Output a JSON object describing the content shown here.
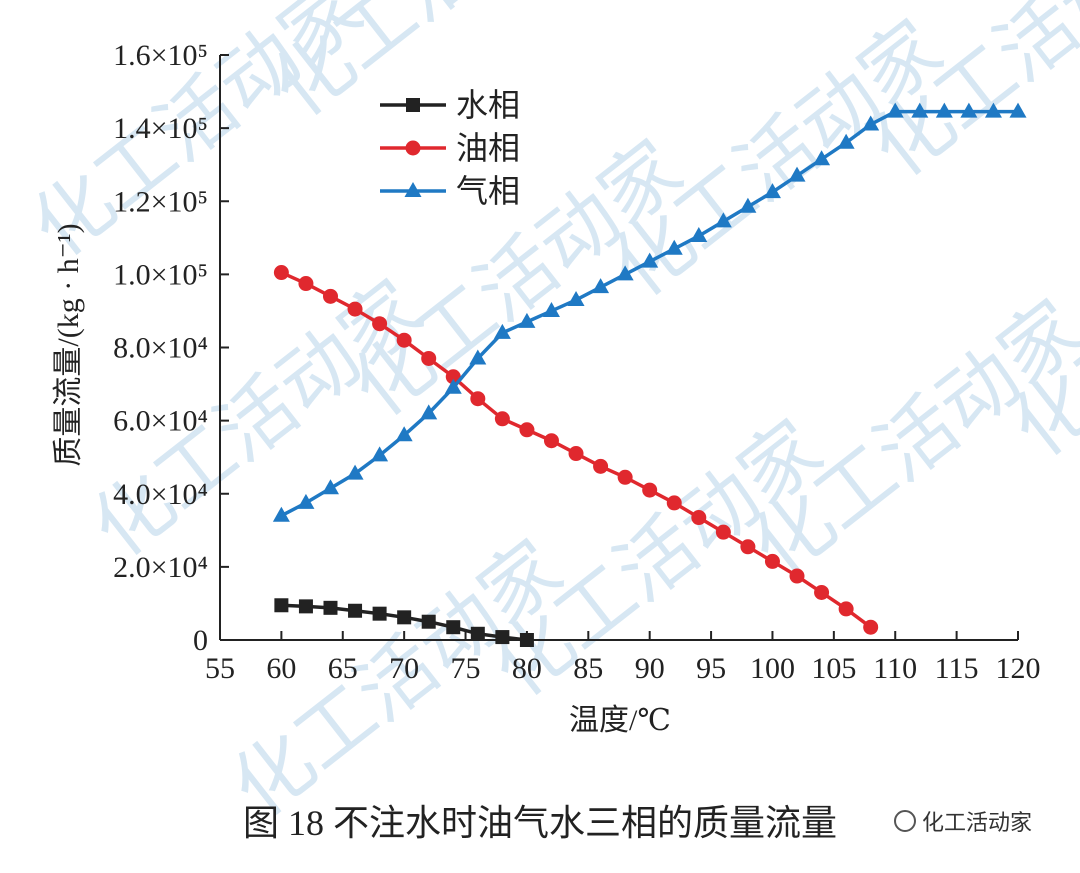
{
  "chart_data": {
    "type": "line",
    "xlabel": "温度/℃",
    "ylabel": "质量流量/(kg · h⁻¹)",
    "xlim": [
      55,
      120
    ],
    "ylim": [
      0,
      160000
    ],
    "x_ticks": [
      "55",
      "60",
      "65",
      "70",
      "75",
      "80",
      "85",
      "90",
      "95",
      "100",
      "105",
      "110",
      "115",
      "120"
    ],
    "y_ticks": [
      "0",
      "2.0×10⁴",
      "4.0×10⁴",
      "6.0×10⁴",
      "8.0×10⁴",
      "1.0×10⁵",
      "1.2×10⁵",
      "1.4×10⁵",
      "1.6×10⁵"
    ],
    "y_tick_values": [
      0,
      20000,
      40000,
      60000,
      80000,
      100000,
      120000,
      140000,
      160000
    ],
    "legend_position": "top-left",
    "grid": false,
    "series": [
      {
        "name": "水相",
        "color": "#222222",
        "marker": "square",
        "x": [
          60,
          62,
          64,
          66,
          68,
          70,
          72,
          74,
          76,
          78,
          80
        ],
        "y": [
          9500,
          9200,
          8800,
          8000,
          7200,
          6200,
          5000,
          3500,
          1700,
          800,
          0
        ]
      },
      {
        "name": "油相",
        "color": "#e0282e",
        "marker": "circle",
        "x": [
          60,
          62,
          64,
          66,
          68,
          70,
          72,
          74,
          76,
          78,
          80,
          82,
          84,
          86,
          88,
          90,
          92,
          94,
          96,
          98,
          100,
          102,
          104,
          106,
          108
        ],
        "y": [
          100500,
          97500,
          94000,
          90500,
          86500,
          82000,
          77000,
          72000,
          66000,
          60500,
          57500,
          54500,
          51000,
          47500,
          44500,
          41000,
          37500,
          33500,
          29500,
          25500,
          21500,
          17500,
          13000,
          8500,
          3500
        ]
      },
      {
        "name": "气相",
        "color": "#1f79c4",
        "marker": "triangle",
        "x": [
          60,
          62,
          64,
          66,
          68,
          70,
          72,
          74,
          76,
          78,
          80,
          82,
          84,
          86,
          88,
          90,
          92,
          94,
          96,
          98,
          100,
          102,
          104,
          106,
          108,
          110,
          112,
          114,
          116,
          118,
          120
        ],
        "y": [
          34000,
          37500,
          41500,
          45500,
          50500,
          56000,
          62000,
          69000,
          77000,
          84000,
          87000,
          90000,
          93000,
          96500,
          100000,
          103500,
          107000,
          110500,
          114500,
          118500,
          122500,
          127000,
          131500,
          136000,
          141000,
          144500,
          144500,
          144500,
          144500,
          144500,
          144500
        ]
      }
    ]
  },
  "caption": "图 18    不注水时油气水三相的质量流量",
  "watermark": {
    "text": "化工活动家",
    "badge": "化工活动家",
    "tile_text": "化工活动家"
  }
}
